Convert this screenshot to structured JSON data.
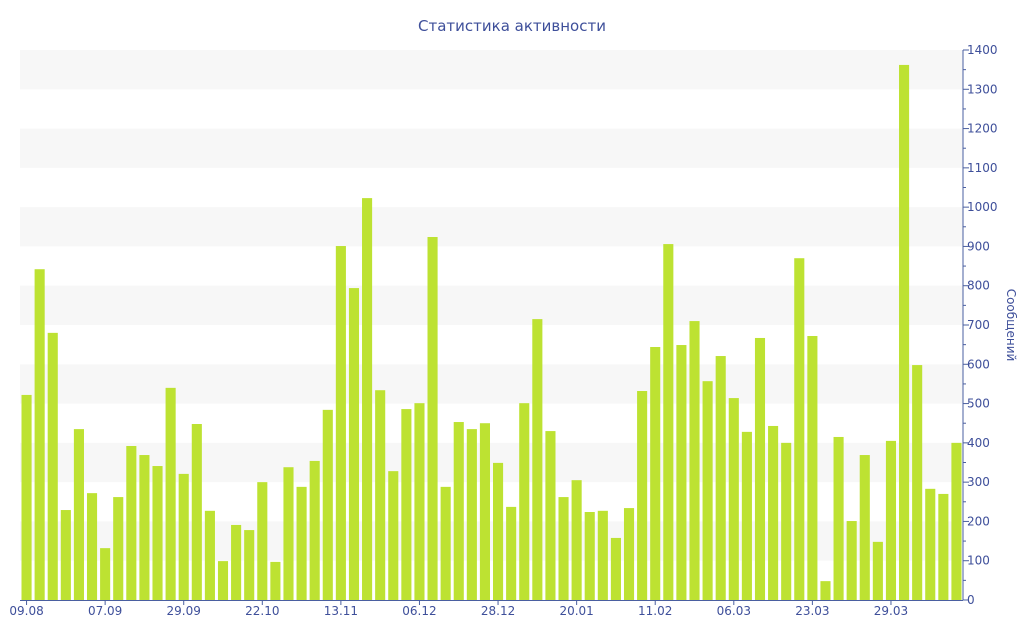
{
  "chart_data": {
    "type": "bar",
    "title": "Статистика активности",
    "xlabel": "",
    "ylabel": "Сообщений",
    "ylim": [
      0,
      1400
    ],
    "yticks": [
      0,
      100,
      200,
      300,
      400,
      500,
      600,
      700,
      800,
      900,
      1000,
      1100,
      1200,
      1300,
      1400
    ],
    "y_axis_side": "right",
    "grid": "alternating horizontal bands",
    "legend": "none",
    "x_tick_labels": [
      {
        "index": 0,
        "label": "09.08"
      },
      {
        "index": 6,
        "label": "07.09"
      },
      {
        "index": 12,
        "label": "29.09"
      },
      {
        "index": 18,
        "label": "22.10"
      },
      {
        "index": 24,
        "label": "13.11"
      },
      {
        "index": 30,
        "label": "06.12"
      },
      {
        "index": 36,
        "label": "28.12"
      },
      {
        "index": 42,
        "label": "20.01"
      },
      {
        "index": 48,
        "label": "11.02"
      },
      {
        "index": 54,
        "label": "06.03"
      },
      {
        "index": 60,
        "label": "23.03"
      },
      {
        "index": 66,
        "label": "29.03"
      }
    ],
    "values": [
      522,
      842,
      680,
      229,
      435,
      272,
      132,
      262,
      392,
      369,
      341,
      540,
      321,
      448,
      227,
      99,
      191,
      178,
      300,
      97,
      338,
      288,
      354,
      484,
      901,
      794,
      1023,
      534,
      328,
      486,
      501,
      924,
      288,
      453,
      435,
      450,
      349,
      237,
      501,
      715,
      430,
      262,
      305,
      224,
      227,
      158,
      234,
      532,
      644,
      906,
      649,
      710,
      557,
      621,
      514,
      428,
      667,
      443,
      400,
      870,
      672,
      48,
      415,
      201,
      369,
      148,
      405,
      1362,
      598,
      283,
      270,
      400
    ],
    "colors": {
      "bar": "#bde232",
      "axis": "#4a5fa0",
      "band": "#f7f7f7",
      "text": "#3e4f9a"
    }
  }
}
